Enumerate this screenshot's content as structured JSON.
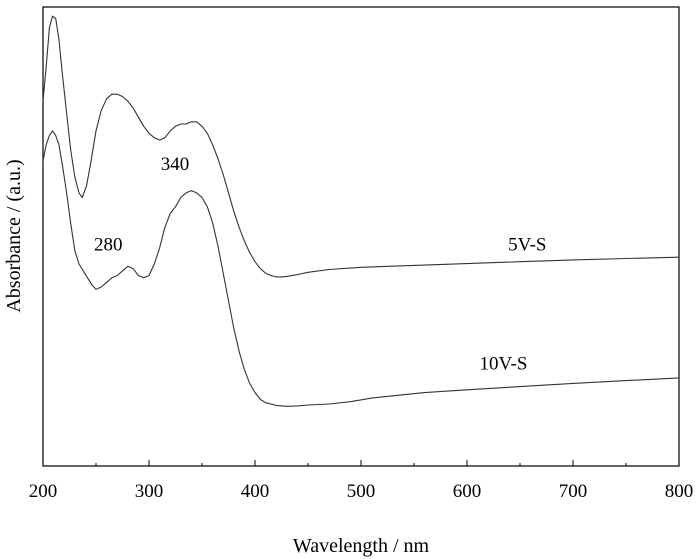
{
  "chart_data": {
    "type": "line",
    "title": "",
    "xlabel": "Wavelength / nm",
    "ylabel": "Absorbance / (a.u.)",
    "xlim": [
      200,
      800
    ],
    "ylim": [
      0,
      1
    ],
    "y_tick_labels_shown": false,
    "grid": false,
    "legend": "none",
    "x_ticks": [
      200,
      300,
      400,
      500,
      600,
      700,
      800
    ],
    "series": [
      {
        "name": "5V-S",
        "x": [
          200,
          203,
          206,
          209,
          212,
          215,
          218,
          222,
          226,
          230,
          234,
          237,
          241,
          245,
          250,
          255,
          260,
          265,
          270,
          275,
          280,
          285,
          290,
          295,
          300,
          305,
          310,
          315,
          320,
          325,
          330,
          335,
          340,
          345,
          350,
          355,
          360,
          365,
          370,
          375,
          380,
          385,
          390,
          395,
          400,
          405,
          410,
          415,
          420,
          425,
          430,
          440,
          450,
          470,
          500,
          550,
          600,
          650,
          700,
          750,
          800
        ],
        "values": [
          0.795,
          0.87,
          0.955,
          0.98,
          0.975,
          0.93,
          0.86,
          0.775,
          0.69,
          0.63,
          0.595,
          0.585,
          0.61,
          0.66,
          0.73,
          0.775,
          0.8,
          0.81,
          0.81,
          0.805,
          0.795,
          0.78,
          0.76,
          0.74,
          0.725,
          0.715,
          0.71,
          0.715,
          0.73,
          0.74,
          0.745,
          0.745,
          0.75,
          0.75,
          0.74,
          0.725,
          0.7,
          0.67,
          0.635,
          0.595,
          0.555,
          0.52,
          0.49,
          0.465,
          0.445,
          0.43,
          0.42,
          0.415,
          0.412,
          0.412,
          0.413,
          0.417,
          0.422,
          0.428,
          0.433,
          0.437,
          0.441,
          0.445,
          0.449,
          0.452,
          0.455
        ]
      },
      {
        "name": "10V-S",
        "x": [
          200,
          203,
          206,
          209,
          212,
          215,
          218,
          222,
          226,
          230,
          234,
          238,
          242,
          246,
          250,
          255,
          260,
          265,
          270,
          275,
          280,
          285,
          290,
          295,
          300,
          305,
          310,
          315,
          320,
          325,
          330,
          335,
          340,
          345,
          350,
          355,
          360,
          365,
          370,
          375,
          380,
          385,
          390,
          395,
          400,
          405,
          410,
          420,
          430,
          440,
          450,
          470,
          490,
          510,
          530,
          560,
          600,
          650,
          700,
          750,
          800
        ],
        "values": [
          0.665,
          0.7,
          0.72,
          0.73,
          0.72,
          0.7,
          0.66,
          0.6,
          0.53,
          0.47,
          0.44,
          0.425,
          0.41,
          0.395,
          0.385,
          0.39,
          0.4,
          0.41,
          0.415,
          0.425,
          0.435,
          0.43,
          0.415,
          0.41,
          0.415,
          0.44,
          0.475,
          0.52,
          0.55,
          0.565,
          0.585,
          0.595,
          0.6,
          0.595,
          0.585,
          0.565,
          0.53,
          0.48,
          0.42,
          0.36,
          0.3,
          0.25,
          0.21,
          0.18,
          0.16,
          0.145,
          0.138,
          0.132,
          0.13,
          0.131,
          0.133,
          0.135,
          0.14,
          0.148,
          0.153,
          0.16,
          0.166,
          0.173,
          0.18,
          0.186,
          0.192
        ]
      }
    ],
    "annotations": [
      {
        "text": "5V-S",
        "x": 675,
        "y": 0.47
      },
      {
        "text": "10V-S",
        "x": 657,
        "y": 0.21
      },
      {
        "text": "340",
        "x": 338,
        "y": 0.645
      },
      {
        "text": "280",
        "x": 275,
        "y": 0.47
      }
    ]
  }
}
